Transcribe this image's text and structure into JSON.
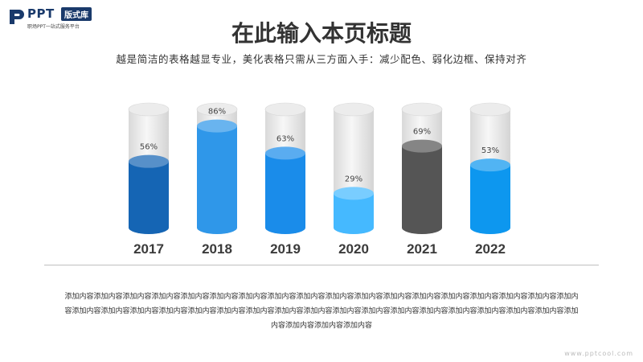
{
  "logo": {
    "brand": "PPT",
    "badge": "版式库",
    "tagline": "职场PPT一站式服务平台"
  },
  "title": "在此输入本页标题",
  "subtitle": "越是简洁的表格越显专业，美化表格只需从三方面入手：减少配色、弱化边框、保持对齐",
  "body_text": "添加内容添加内容添加内容添加内容添加内容添加内容添加内容添加内容添加内容添加内容添加内容添加内容添加内容添加内容添加内容添加内容添加内容添加内容添加内容添加内容添加内容添加内容添加内容添加内容添加内容添加内容添加内容添加内容添加内容添加内容添加内容添加内容添加内容添加内容添加内容添加内容添加内容添加内容添加内容",
  "watermark": "www.pptcool.com",
  "chart_data": {
    "type": "bar",
    "style": "cylinder",
    "categories": [
      "2017",
      "2018",
      "2019",
      "2020",
      "2021",
      "2022"
    ],
    "values": [
      56,
      86,
      63,
      29,
      69,
      53
    ],
    "value_labels": [
      "56%",
      "86%",
      "63%",
      "29%",
      "69%",
      "53%"
    ],
    "colors": [
      "#1565b4",
      "#2f97e9",
      "#1a8cea",
      "#45b9ff",
      "#555555",
      "#0d97ef"
    ],
    "ylim": [
      0,
      100
    ]
  }
}
